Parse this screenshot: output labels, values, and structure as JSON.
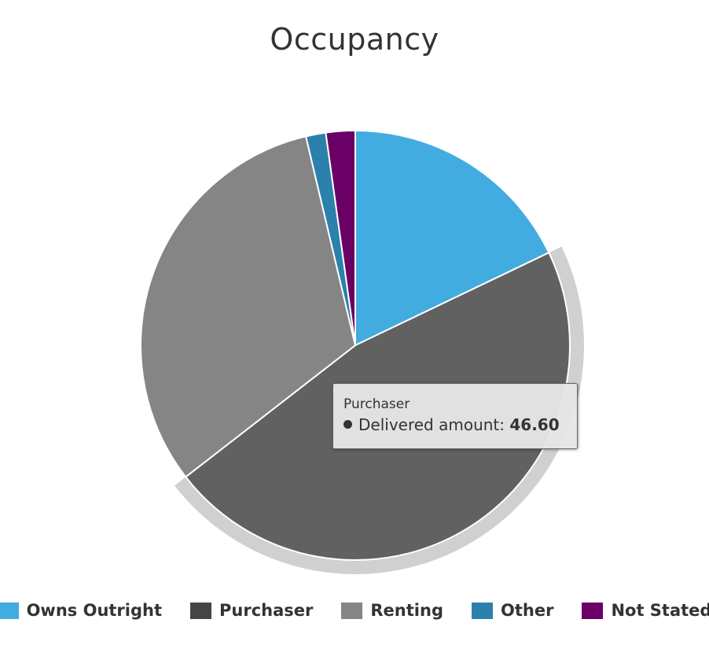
{
  "chart_data": {
    "type": "pie",
    "title": "Occupancy",
    "categories": [
      "Owns Outright",
      "Purchaser",
      "Renting",
      "Other",
      "Not Stated"
    ],
    "values": [
      17.9,
      46.6,
      31.8,
      1.5,
      2.2
    ],
    "colors": [
      "#42abe0",
      "#616161",
      "#858585",
      "#2b81ab",
      "#6a0065"
    ],
    "legend_colors": [
      "#42abe0",
      "#454545",
      "#858585",
      "#2b81ab",
      "#6a0065"
    ],
    "hovered_slice": "Purchaser",
    "legend_position": "bottom"
  },
  "tooltip": {
    "title": "Purchaser",
    "label": "Delivered amount:",
    "value": "46.60"
  }
}
